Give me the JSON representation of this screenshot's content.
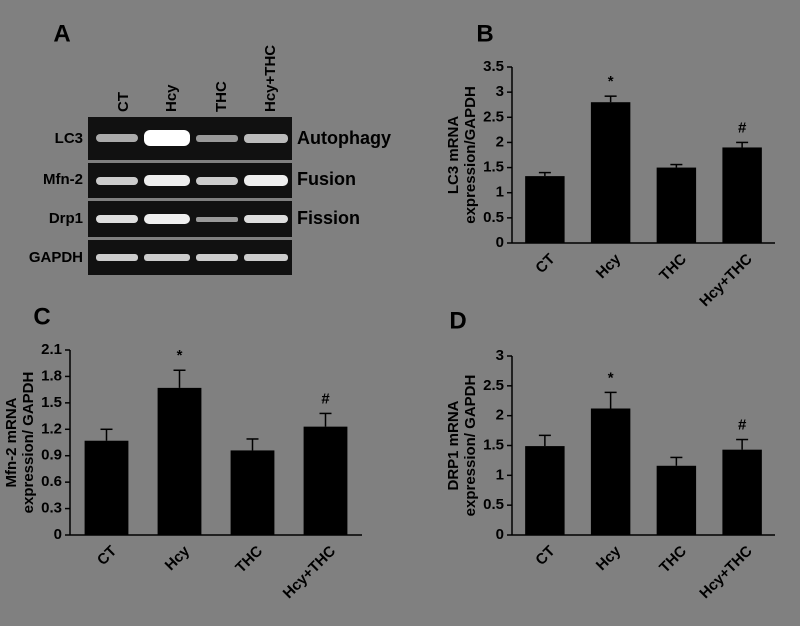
{
  "panel_a": {
    "panel": "A",
    "lanes": [
      "CT",
      "Hcy",
      "THC",
      "Hcy+THC"
    ],
    "rows": [
      {
        "label": "LC3",
        "process": "Autophagy"
      },
      {
        "label": "Mfn-2",
        "process": "Fusion"
      },
      {
        "label": "Drp1",
        "process": "Fission"
      },
      {
        "label": "GAPDH"
      }
    ]
  },
  "chart_data": [
    {
      "type": "bar",
      "panel": "B",
      "ylabel_lines": [
        "LC3 mRNA",
        "expression/GAPDH"
      ],
      "categories": [
        "CT",
        "Hcy",
        "THC",
        "Hcy+THC"
      ],
      "values": [
        1.33,
        2.8,
        1.5,
        1.9
      ],
      "errors": [
        0.07,
        0.12,
        0.06,
        0.1
      ],
      "color": "#000000",
      "ylim": [
        0,
        3.5
      ],
      "yticks": [
        0,
        0.5,
        1,
        1.5,
        2,
        2.5,
        3,
        3.5
      ],
      "annotations": [
        {
          "category": "Hcy",
          "text": "*"
        },
        {
          "category": "Hcy+THC",
          "text": "#"
        }
      ]
    },
    {
      "type": "bar",
      "panel": "C",
      "ylabel_lines": [
        "Mfn-2 mRNA",
        "expression/ GAPDH"
      ],
      "categories": [
        "CT",
        "Hcy",
        "THC",
        "Hcy+THC"
      ],
      "values": [
        1.07,
        1.67,
        0.96,
        1.23
      ],
      "errors": [
        0.13,
        0.2,
        0.13,
        0.15
      ],
      "color": "#000000",
      "ylim": [
        0,
        2.1
      ],
      "yticks": [
        0,
        0.3,
        0.6,
        0.9,
        1.2,
        1.5,
        1.8,
        2.1
      ],
      "annotations": [
        {
          "category": "Hcy",
          "text": "*"
        },
        {
          "category": "Hcy+THC",
          "text": "#"
        }
      ]
    },
    {
      "type": "bar",
      "panel": "D",
      "ylabel_lines": [
        "DRP1 mRNA",
        "expression/ GAPDH"
      ],
      "categories": [
        "CT",
        "Hcy",
        "THC",
        "Hcy+THC"
      ],
      "values": [
        1.49,
        2.12,
        1.16,
        1.43
      ],
      "errors": [
        0.18,
        0.27,
        0.14,
        0.17
      ],
      "color": "#000000",
      "ylim": [
        0,
        3
      ],
      "yticks": [
        0,
        0.5,
        1,
        1.5,
        2,
        2.5,
        3
      ],
      "annotations": [
        {
          "category": "Hcy",
          "text": "*"
        },
        {
          "category": "Hcy+THC",
          "text": "#"
        }
      ]
    }
  ]
}
